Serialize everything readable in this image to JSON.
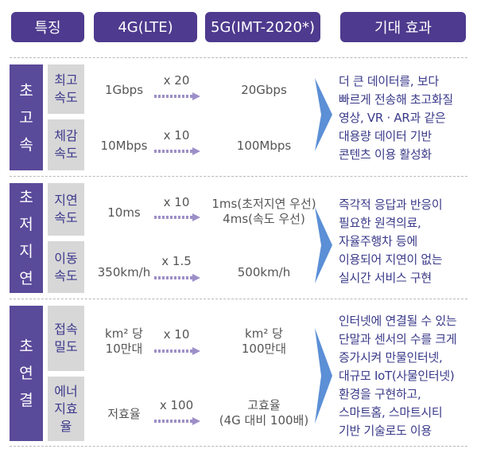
{
  "headers": [
    "특징",
    "4G(LTE)",
    "5G(IMT-2020*)",
    "기대 효과"
  ],
  "sections": [
    {
      "category": "초고속",
      "rows": [
        {
          "label": "최고속도",
          "lte": "1Gbps",
          "multiplier": "x 20",
          "g5": "20Gbps"
        },
        {
          "label": "체감속도",
          "lte": "10Mbps",
          "multiplier": "x 10",
          "g5": "100Mbps"
        }
      ],
      "effect": [
        "더 큰 데이터를, 보다",
        "빠르게 전송해 초고화질",
        "영상, VR · AR과 같은",
        "대용량 데이터 기반",
        "콘텐츠 이용 활성화"
      ]
    },
    {
      "category": "초저지연",
      "rows": [
        {
          "label": "지연속도",
          "lte": "10ms",
          "multiplier": "x 10",
          "g5": "1ms(초저지연 우선)",
          "g5_line2": "4ms(속도 우선)"
        },
        {
          "label": "이동속도",
          "lte": "350km/h",
          "multiplier": "x 1.5",
          "g5": "500km/h"
        }
      ],
      "effect": [
        "즉각적 응답과 반응이",
        "필요한 원격의료,",
        "자율주행차 등에",
        "이용되어 지연이 없는",
        "실시간 서비스 구현"
      ]
    },
    {
      "category": "초연결",
      "rows": [
        {
          "label": "접속밀도",
          "lte": "km² 당",
          "lte_line2": "10만대",
          "multiplier": "x 10",
          "g5": "km² 당",
          "g5_line2": "100만대"
        },
        {
          "label": "에너지효율",
          "lte": "저효율",
          "multiplier": "x 100",
          "g5": "고효율",
          "g5_line2": "(4G 대비 100배)"
        }
      ],
      "effect": [
        "인터넷에 연결될 수 있는",
        "단말과 센서의 수를 크게",
        "증가시켜 만물인터넷,",
        "대규모 IoT(사물인터넷)",
        "환경을 구현하고,",
        "스마트홈, 스마트시티",
        "기반 기술로도 이용"
      ]
    }
  ],
  "colors": {
    "header": "#4e3a8e",
    "category": "#5a4a9a",
    "sublabel_bg": "#d7d7d7",
    "arrow": "#9d8fc8",
    "chevron": "#5b8fd6"
  }
}
